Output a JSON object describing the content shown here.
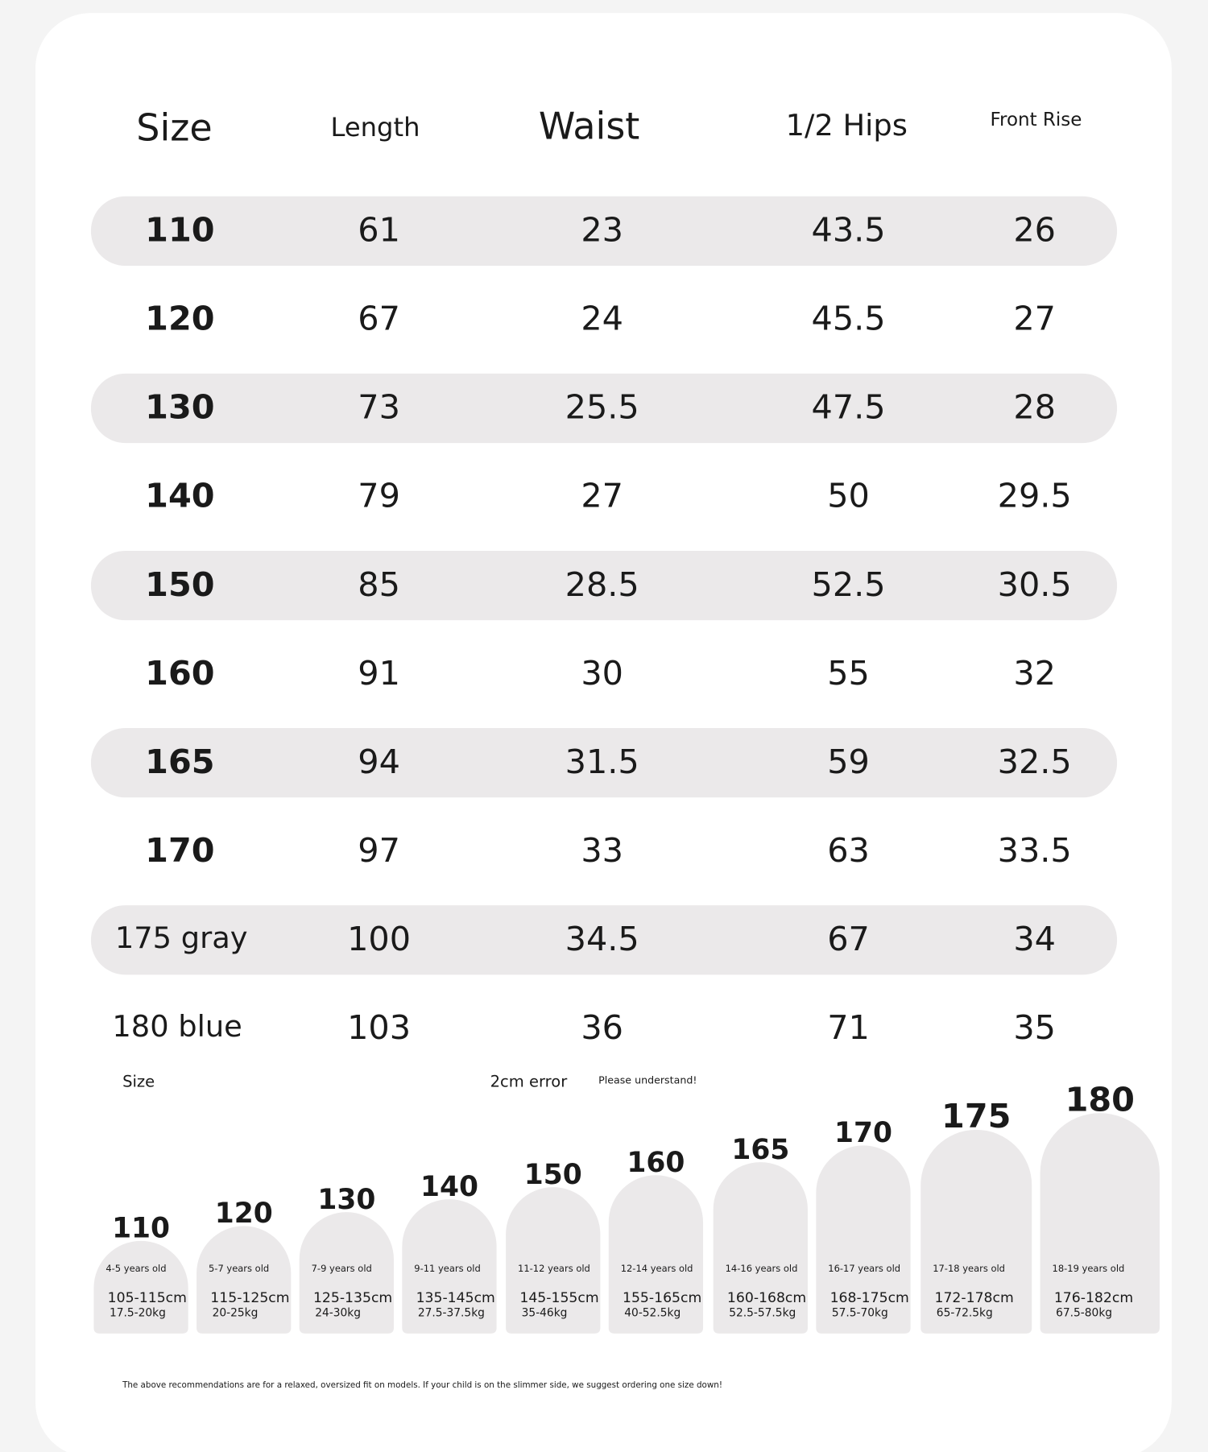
{
  "table": {
    "header": [
      "Size",
      "Length",
      "Waist",
      "1/2 Hips",
      "Front Rise"
    ],
    "rows": [
      [
        "110",
        "61",
        "23",
        "43.5",
        "26"
      ],
      [
        "120",
        "67",
        "24",
        "45.5",
        "27"
      ],
      [
        "130",
        "73",
        "25.5",
        "47.5",
        "28"
      ],
      [
        "140",
        "79",
        "27",
        "50",
        "29.5"
      ],
      [
        "150",
        "85",
        "28.5",
        "52.5",
        "30.5"
      ],
      [
        "160",
        "91",
        "30",
        "55",
        "32"
      ],
      [
        "165",
        "94",
        "31.5",
        "59",
        "32.5"
      ],
      [
        "170",
        "97",
        "33",
        "63",
        "33.5"
      ],
      [
        "175 gray",
        "100",
        "34.5",
        "67",
        "34"
      ],
      [
        "180 blue",
        "103",
        "36",
        "71",
        "35"
      ]
    ]
  },
  "notes": {
    "size": "Size",
    "error": "2cm error",
    "please": "Please understand!"
  },
  "guide": [
    {
      "size": "110",
      "age": "4-5 years old",
      "height": "105-115cm",
      "weight": "17.5-20kg"
    },
    {
      "size": "120",
      "age": "5-7 years old",
      "height": "115-125cm",
      "weight": "20-25kg"
    },
    {
      "size": "130",
      "age": "7-9 years old",
      "height": "125-135cm",
      "weight": "24-30kg"
    },
    {
      "size": "140",
      "age": "9-11 years old",
      "height": "135-145cm",
      "weight": "27.5-37.5kg"
    },
    {
      "size": "150",
      "age": "11-12 years old",
      "height": "145-155cm",
      "weight": "35-46kg"
    },
    {
      "size": "160",
      "age": "12-14 years old",
      "height": "155-165cm",
      "weight": "40-52.5kg"
    },
    {
      "size": "165",
      "age": "14-16 years old",
      "height": "160-168cm",
      "weight": "52.5-57.5kg"
    },
    {
      "size": "170",
      "age": "16-17 years old",
      "height": "168-175cm",
      "weight": "57.5-70kg"
    },
    {
      "size": "175",
      "age": "17-18 years old",
      "height": "172-178cm",
      "weight": "65-72.5kg"
    },
    {
      "size": "180",
      "age": "18-19 years old",
      "height": "176-182cm",
      "weight": "67.5-80kg"
    }
  ],
  "footnote": "The above recommendations are for a relaxed, oversized fit on models. If your child is on the slimmer side, we suggest ordering one size down!"
}
